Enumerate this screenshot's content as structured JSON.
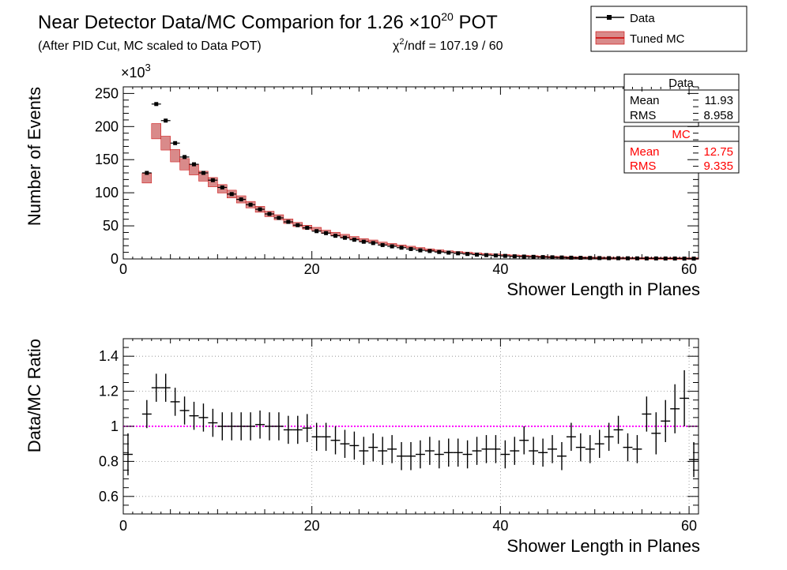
{
  "header": {
    "title_main": "Near Detector Data/MC Comparion for 1.26 ",
    "title_times": "×10",
    "title_exp": "20",
    "title_end": " POT",
    "subtitle": "(After PID Cut, MC scaled to Data POT)",
    "chi2_chi": "χ",
    "chi2_exp": "2",
    "chi2_rest": "/ndf = 107.19 / 60"
  },
  "legend": {
    "data_label": "Data",
    "mc_label": "Tuned MC"
  },
  "stats": {
    "data": {
      "title": "Data",
      "mean_label": "Mean",
      "mean": "11.93",
      "rms_label": "RMS",
      "rms": "8.958"
    },
    "mc": {
      "title": "MC",
      "mean_label": "Mean",
      "mean": "12.75",
      "rms_label": "RMS",
      "rms": "9.335"
    }
  },
  "colors": {
    "data": "#000000",
    "mc": "#cc0000",
    "mc_fill": "#d98a8a",
    "reference_line": "#ff00ff"
  },
  "chart_data": [
    {
      "type": "scatter",
      "xlabel": "Shower Length in Planes",
      "ylabel": "Number of Events",
      "y_multiplier": "×10",
      "y_multiplier_exp": "3",
      "xlim": [
        0,
        61
      ],
      "ylim": [
        0,
        260
      ],
      "xticks": [
        0,
        20,
        40,
        60
      ],
      "yticks": [
        0,
        50,
        100,
        150,
        200,
        250
      ],
      "grid": false,
      "series": [
        {
          "name": "Data",
          "x": [
            2.5,
            3.5,
            4.5,
            5.5,
            6.5,
            7.5,
            8.5,
            9.5,
            10.5,
            11.5,
            12.5,
            13.5,
            14.5,
            15.5,
            16.5,
            17.5,
            18.5,
            19.5,
            20.5,
            21.5,
            22.5,
            23.5,
            24.5,
            25.5,
            26.5,
            27.5,
            28.5,
            29.5,
            30.5,
            31.5,
            32.5,
            33.5,
            34.5,
            35.5,
            36.5,
            37.5,
            38.5,
            39.5,
            40.5,
            41.5,
            42.5,
            43.5,
            44.5,
            45.5,
            46.5,
            47.5,
            48.5,
            49.5,
            50.5,
            51.5,
            52.5,
            53.5,
            54.5,
            55.5,
            56.5,
            57.5,
            58.5,
            59.5,
            60.5
          ],
          "values": [
            130,
            234,
            209,
            175,
            154,
            143,
            130,
            119,
            108,
            98,
            90,
            82,
            75,
            68,
            62,
            56,
            51,
            47,
            42,
            39,
            35,
            32,
            29,
            26,
            24,
            21,
            19,
            17,
            15,
            13,
            12,
            10.5,
            9.5,
            8.5,
            7.5,
            6.5,
            5.8,
            5.2,
            4.6,
            4,
            3.6,
            3.2,
            2.8,
            2.5,
            2.2,
            1.9,
            1.7,
            1.5,
            1.3,
            1.2,
            1.1,
            1,
            0.9,
            0.8,
            0.8,
            0.7,
            0.7,
            0.6,
            0.6
          ]
        },
        {
          "name": "Tuned MC",
          "x": [
            2.5,
            3.5,
            4.5,
            5.5,
            6.5,
            7.5,
            8.5,
            9.5,
            10.5,
            11.5,
            12.5,
            13.5,
            14.5,
            15.5,
            16.5,
            17.5,
            18.5,
            19.5,
            20.5,
            21.5,
            22.5,
            23.5,
            24.5,
            25.5,
            26.5,
            27.5,
            28.5,
            29.5,
            30.5,
            31.5,
            32.5,
            33.5,
            34.5,
            35.5,
            36.5,
            37.5,
            38.5,
            39.5,
            40.5,
            41.5,
            42.5,
            43.5,
            44.5,
            45.5,
            46.5,
            47.5,
            48.5,
            49.5,
            50.5,
            51.5,
            52.5,
            53.5,
            54.5,
            55.5,
            56.5,
            57.5,
            58.5,
            59.5,
            60.5
          ],
          "values": [
            122,
            193,
            175,
            156,
            143,
            135,
            125,
            116,
            106,
            98,
            90,
            82,
            75,
            68,
            63,
            57,
            52,
            48,
            45,
            41,
            38,
            35,
            32,
            29,
            27,
            24,
            22,
            20,
            18,
            16,
            14,
            12.5,
            11,
            10,
            9,
            8,
            7,
            6.2,
            5.5,
            4.8,
            4.2,
            3.7,
            3.2,
            2.8,
            2.5,
            2.2,
            1.9,
            1.7,
            1.5,
            1.3,
            1.2,
            1.1,
            1,
            0.9,
            0.8,
            0.7,
            0.7,
            0.6,
            0.6
          ]
        }
      ]
    },
    {
      "type": "scatter",
      "xlabel": "Shower Length in Planes",
      "ylabel": "Data/MC Ratio",
      "xlim": [
        0,
        61
      ],
      "ylim": [
        0.5,
        1.5
      ],
      "xticks": [
        0,
        20,
        40,
        60
      ],
      "yticks": [
        0.6,
        0.8,
        1,
        1.2,
        1.4
      ],
      "grid": true,
      "reference_y": 1,
      "series": [
        {
          "name": "Data/MC",
          "x": [
            0.5,
            2.5,
            3.5,
            4.5,
            5.5,
            6.5,
            7.5,
            8.5,
            9.5,
            10.5,
            11.5,
            12.5,
            13.5,
            14.5,
            15.5,
            16.5,
            17.5,
            18.5,
            19.5,
            20.5,
            21.5,
            22.5,
            23.5,
            24.5,
            25.5,
            26.5,
            27.5,
            28.5,
            29.5,
            30.5,
            31.5,
            32.5,
            33.5,
            34.5,
            35.5,
            36.5,
            37.5,
            38.5,
            39.5,
            40.5,
            41.5,
            42.5,
            43.5,
            44.5,
            45.5,
            46.5,
            47.5,
            48.5,
            49.5,
            50.5,
            51.5,
            52.5,
            53.5,
            54.5,
            55.5,
            56.5,
            57.5,
            58.5,
            59.5,
            60.5
          ],
          "values": [
            0.84,
            1.07,
            1.22,
            1.22,
            1.14,
            1.09,
            1.06,
            1.05,
            1.02,
            1.0,
            1.0,
            1.0,
            1.0,
            1.01,
            1.0,
            1.0,
            0.98,
            0.98,
            0.99,
            0.94,
            0.94,
            0.92,
            0.9,
            0.89,
            0.86,
            0.88,
            0.86,
            0.87,
            0.83,
            0.83,
            0.84,
            0.86,
            0.84,
            0.85,
            0.85,
            0.84,
            0.86,
            0.87,
            0.87,
            0.84,
            0.86,
            0.92,
            0.86,
            0.85,
            0.87,
            0.83,
            0.94,
            0.88,
            0.87,
            0.9,
            0.94,
            0.98,
            0.88,
            0.87,
            1.07,
            0.96,
            1.03,
            1.1,
            1.16,
            0.81
          ],
          "errors": [
            0.12,
            0.08,
            0.08,
            0.08,
            0.08,
            0.08,
            0.08,
            0.08,
            0.08,
            0.08,
            0.08,
            0.08,
            0.08,
            0.08,
            0.08,
            0.08,
            0.08,
            0.08,
            0.08,
            0.08,
            0.08,
            0.08,
            0.08,
            0.08,
            0.08,
            0.08,
            0.08,
            0.08,
            0.08,
            0.08,
            0.08,
            0.08,
            0.08,
            0.08,
            0.08,
            0.08,
            0.08,
            0.08,
            0.08,
            0.08,
            0.08,
            0.08,
            0.08,
            0.08,
            0.08,
            0.08,
            0.08,
            0.08,
            0.08,
            0.08,
            0.08,
            0.08,
            0.08,
            0.08,
            0.1,
            0.12,
            0.12,
            0.14,
            0.16,
            0.1
          ]
        }
      ]
    }
  ]
}
